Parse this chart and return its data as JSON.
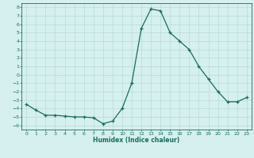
{
  "title": "",
  "xlabel": "Humidex (Indice chaleur)",
  "ylabel": "",
  "x": [
    0,
    1,
    2,
    3,
    4,
    5,
    6,
    7,
    8,
    9,
    10,
    11,
    12,
    13,
    14,
    15,
    16,
    17,
    18,
    19,
    20,
    21,
    22,
    23
  ],
  "y": [
    -3.5,
    -4.2,
    -4.8,
    -4.8,
    -4.9,
    -5.0,
    -5.0,
    -5.1,
    -5.8,
    -5.5,
    -4.0,
    -1.0,
    5.5,
    7.8,
    7.6,
    5.0,
    4.0,
    3.0,
    1.0,
    -0.5,
    -2.0,
    -3.2,
    -3.2,
    -2.7
  ],
  "line_color": "#1a6b5e",
  "bg_color": "#d5f0ee",
  "grid_color": "#b8dbd8",
  "tick_label_color": "#1a6b5e",
  "ylim": [
    -6.5,
    8.5
  ],
  "xlim": [
    -0.5,
    23.5
  ],
  "yticks": [
    -6,
    -5,
    -4,
    -3,
    -2,
    -1,
    0,
    1,
    2,
    3,
    4,
    5,
    6,
    7,
    8
  ],
  "xticks": [
    0,
    1,
    2,
    3,
    4,
    5,
    6,
    7,
    8,
    9,
    10,
    11,
    12,
    13,
    14,
    15,
    16,
    17,
    18,
    19,
    20,
    21,
    22,
    23
  ],
  "figsize": [
    3.2,
    2.0
  ],
  "dpi": 100
}
